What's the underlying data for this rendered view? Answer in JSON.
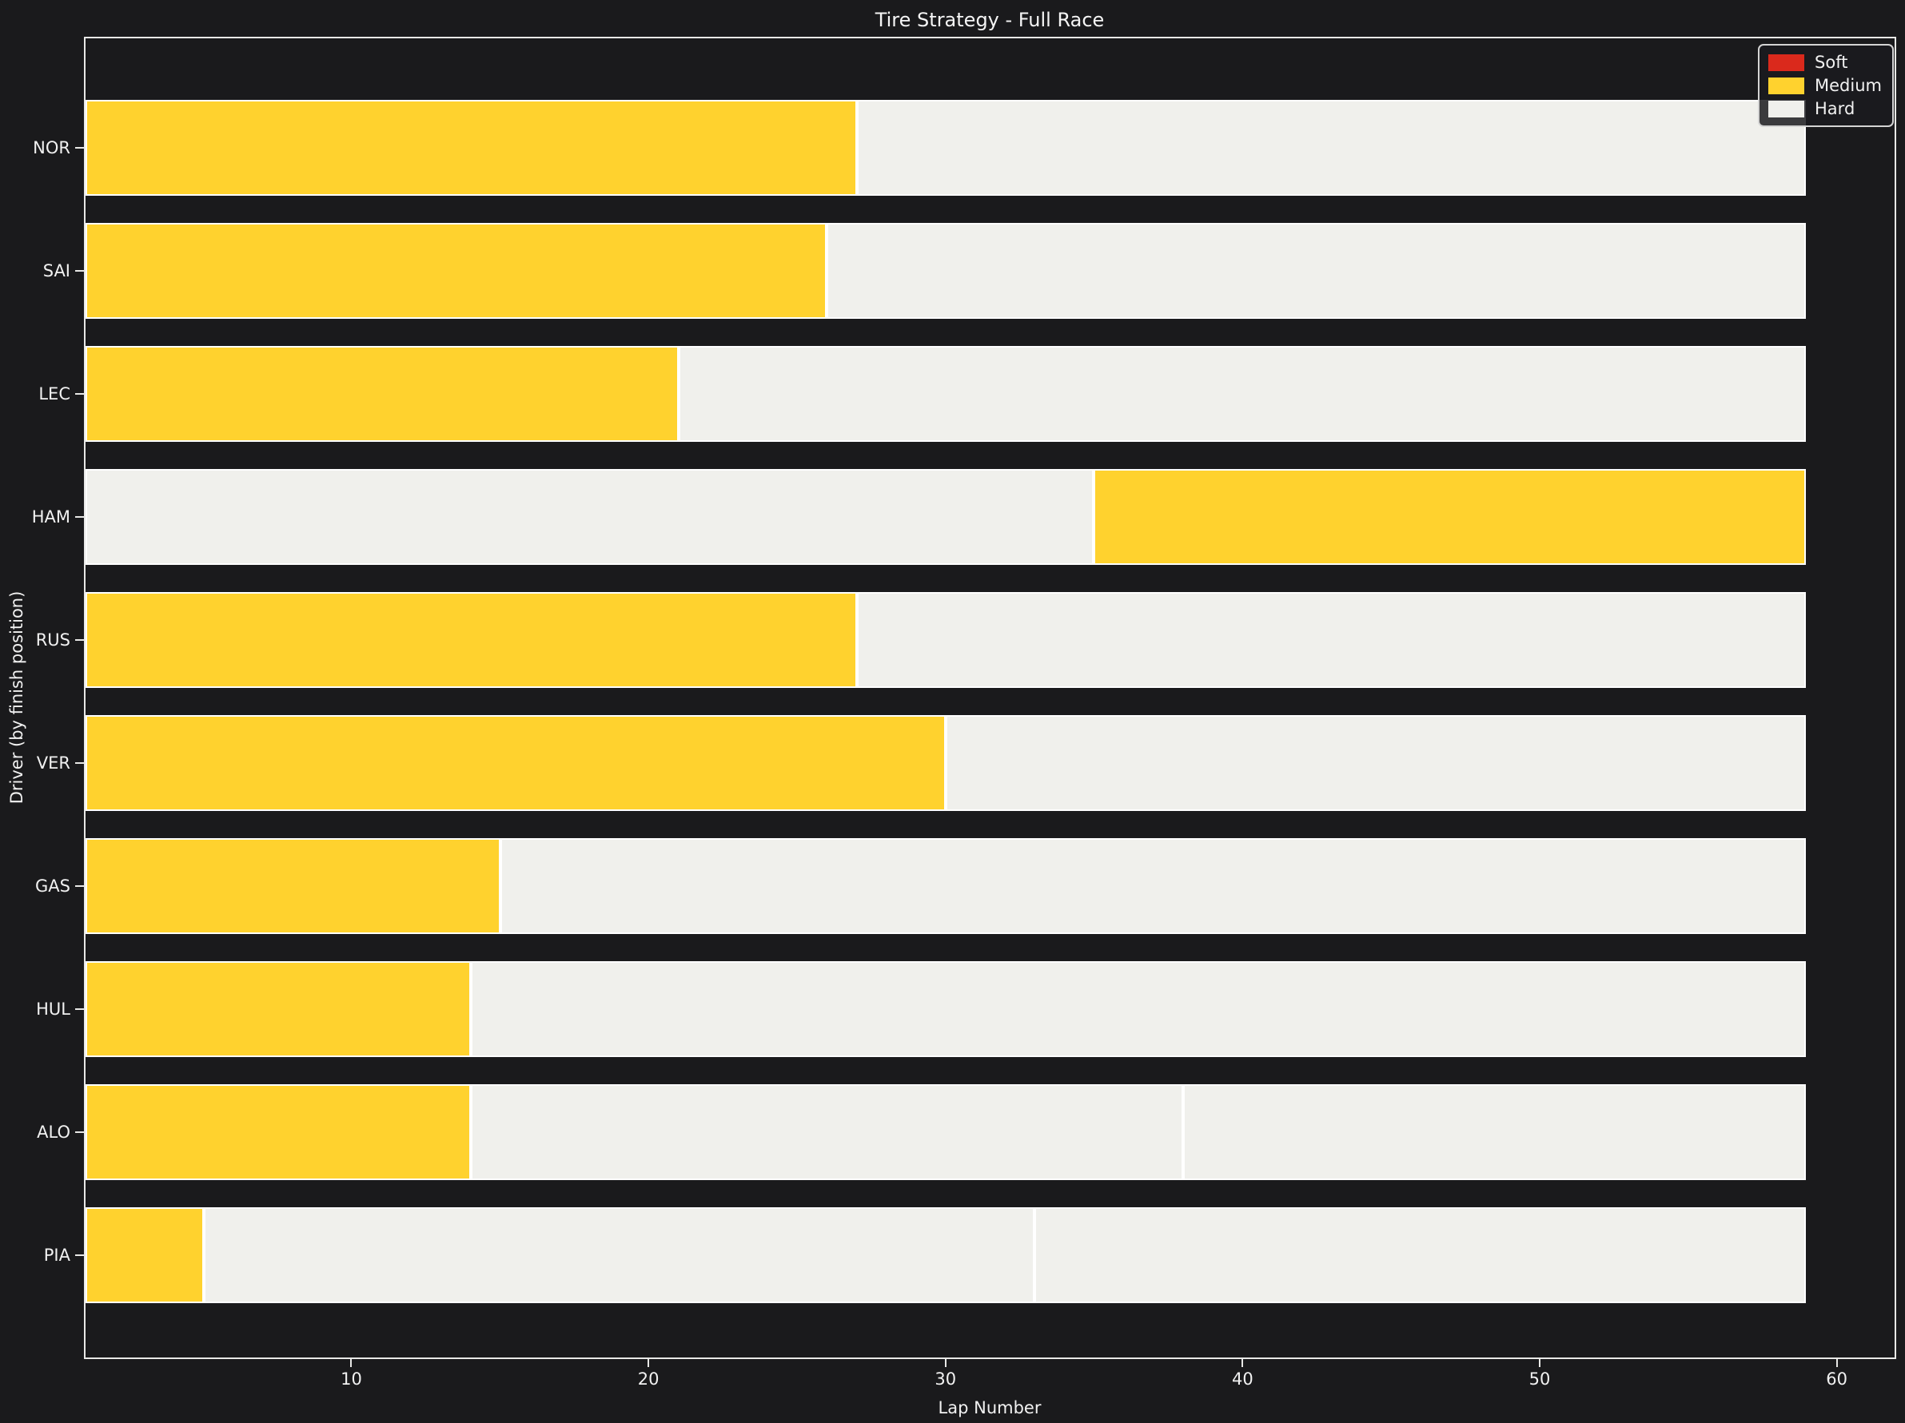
{
  "title": "Tire Strategy - Full Race",
  "axes": {
    "xlabel": "Lap Number",
    "ylabel": "Driver (by finish position)"
  },
  "legend": {
    "items": [
      {
        "label": "Soft",
        "color": "#da291c"
      },
      {
        "label": "Medium",
        "color": "#ffd22e"
      },
      {
        "label": "Hard",
        "color": "#f0f0ec"
      }
    ]
  },
  "colors": {
    "background": "#1a1a1c",
    "text": "#f1f1f1",
    "spine": "#e8e8e6",
    "bar_edge": "#ffffff"
  },
  "chart_data": {
    "type": "bar",
    "orientation": "horizontal_gantt",
    "title": "Tire Strategy - Full Race",
    "xlabel": "Lap Number",
    "ylabel": "Driver (by finish position)",
    "xlim": [
      1,
      62
    ],
    "x_ticks": [
      10,
      20,
      30,
      40,
      50,
      60
    ],
    "race_end_lap": 59,
    "grid": false,
    "legend_position": "upper right",
    "compound_colors": {
      "Soft": "#da291c",
      "Medium": "#ffd22e",
      "Hard": "#f0f0ec"
    },
    "drivers": [
      {
        "code": "NOR",
        "stints": [
          {
            "compound": "Medium",
            "start_lap": 1,
            "end_lap": 27
          },
          {
            "compound": "Hard",
            "start_lap": 27,
            "end_lap": 59
          }
        ]
      },
      {
        "code": "SAI",
        "stints": [
          {
            "compound": "Medium",
            "start_lap": 1,
            "end_lap": 26
          },
          {
            "compound": "Hard",
            "start_lap": 26,
            "end_lap": 59
          }
        ]
      },
      {
        "code": "LEC",
        "stints": [
          {
            "compound": "Medium",
            "start_lap": 1,
            "end_lap": 21
          },
          {
            "compound": "Hard",
            "start_lap": 21,
            "end_lap": 59
          }
        ]
      },
      {
        "code": "HAM",
        "stints": [
          {
            "compound": "Hard",
            "start_lap": 1,
            "end_lap": 35
          },
          {
            "compound": "Medium",
            "start_lap": 35,
            "end_lap": 59
          }
        ]
      },
      {
        "code": "RUS",
        "stints": [
          {
            "compound": "Medium",
            "start_lap": 1,
            "end_lap": 27
          },
          {
            "compound": "Hard",
            "start_lap": 27,
            "end_lap": 59
          }
        ]
      },
      {
        "code": "VER",
        "stints": [
          {
            "compound": "Medium",
            "start_lap": 1,
            "end_lap": 30
          },
          {
            "compound": "Hard",
            "start_lap": 30,
            "end_lap": 59
          }
        ]
      },
      {
        "code": "GAS",
        "stints": [
          {
            "compound": "Medium",
            "start_lap": 1,
            "end_lap": 15
          },
          {
            "compound": "Hard",
            "start_lap": 15,
            "end_lap": 59
          }
        ]
      },
      {
        "code": "HUL",
        "stints": [
          {
            "compound": "Medium",
            "start_lap": 1,
            "end_lap": 14
          },
          {
            "compound": "Hard",
            "start_lap": 14,
            "end_lap": 59
          }
        ]
      },
      {
        "code": "ALO",
        "stints": [
          {
            "compound": "Medium",
            "start_lap": 1,
            "end_lap": 14
          },
          {
            "compound": "Hard",
            "start_lap": 14,
            "end_lap": 38
          },
          {
            "compound": "Hard",
            "start_lap": 38,
            "end_lap": 59
          }
        ]
      },
      {
        "code": "PIA",
        "stints": [
          {
            "compound": "Medium",
            "start_lap": 1,
            "end_lap": 5
          },
          {
            "compound": "Hard",
            "start_lap": 5,
            "end_lap": 33
          },
          {
            "compound": "Hard",
            "start_lap": 33,
            "end_lap": 59
          }
        ]
      }
    ]
  }
}
